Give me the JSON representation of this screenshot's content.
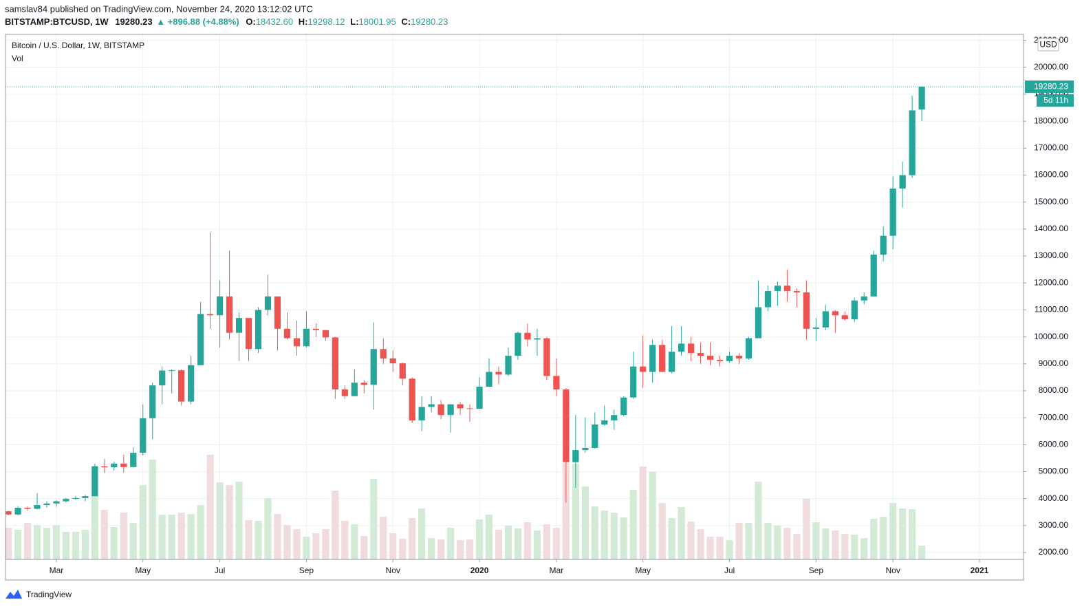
{
  "chart_data": {
    "type": "candlestick",
    "publisher_line": "samslav84 published on TradingView.com, November 24, 2020 13:12:02 UTC",
    "symbol": "BITSTAMP:BTCUSD, 1W",
    "last": "19280.23",
    "change": "▲ +896.88 (+4.88%)",
    "ohlc_labels": [
      {
        "label": "O:",
        "value": "18432.60"
      },
      {
        "label": "H:",
        "value": "19298.12"
      },
      {
        "label": "L:",
        "value": "18001.95"
      },
      {
        "label": "C:",
        "value": "19280.23"
      }
    ],
    "title": "Bitcoin / U.S. Dollar, 1W, BITSTAMP",
    "volume_label": "Vol",
    "currency": "USD",
    "price_tag": "19280.23",
    "countdown": "5d 11h",
    "footer": "TradingView",
    "up_color": "#26a69a",
    "down_color": "#ef5350",
    "volume_up_color": "#d3ebd6",
    "volume_down_color": "#f0dcdc",
    "grid": true,
    "x": [
      0,
      1,
      2,
      3,
      4,
      5,
      6,
      7,
      8,
      9,
      10,
      11,
      12,
      13,
      14,
      15,
      16,
      17,
      18,
      19,
      20,
      21,
      22,
      23,
      24,
      25,
      26,
      27,
      28,
      29,
      30,
      31,
      32,
      33,
      34,
      35,
      36,
      37,
      38,
      39,
      40,
      41,
      42,
      43,
      44,
      45,
      46,
      47,
      48,
      49,
      50,
      51,
      52,
      53,
      54,
      55,
      56,
      57,
      58,
      59,
      60,
      61,
      62,
      63,
      64,
      65,
      66,
      67,
      68,
      69,
      70,
      71,
      72,
      73,
      74,
      75,
      76,
      77,
      78,
      79,
      80,
      81,
      82,
      83,
      84,
      85,
      86,
      87,
      88,
      89,
      90,
      91,
      92,
      93,
      94,
      95
    ],
    "xlim": [
      -0.29,
      105.58
    ],
    "xticks": [
      {
        "value": 5,
        "label": "Mar"
      },
      {
        "value": 14,
        "label": "May"
      },
      {
        "value": 22,
        "label": "Jul"
      },
      {
        "value": 31,
        "label": "Sep"
      },
      {
        "value": 40,
        "label": "Nov"
      },
      {
        "value": 49,
        "label": "2020"
      },
      {
        "value": 57,
        "label": "Mar"
      },
      {
        "value": 66,
        "label": "May"
      },
      {
        "value": 75,
        "label": "Jul"
      },
      {
        "value": 84,
        "label": "Sep"
      },
      {
        "value": 92,
        "label": "Nov"
      },
      {
        "value": 101,
        "label": "2021"
      }
    ],
    "ylim": [
      1745,
      21220
    ],
    "yticks": [
      {
        "value": 2000,
        "label": "2000.00"
      },
      {
        "value": 3000,
        "label": "3000.00"
      },
      {
        "value": 4000,
        "label": "4000.00"
      },
      {
        "value": 5000,
        "label": "5000.00"
      },
      {
        "value": 6000,
        "label": "6000.00"
      },
      {
        "value": 7000,
        "label": "7000.00"
      },
      {
        "value": 8000,
        "label": "8000.00"
      },
      {
        "value": 9000,
        "label": "9000.00"
      },
      {
        "value": 10000,
        "label": "10000.00"
      },
      {
        "value": 11000,
        "label": "11000.00"
      },
      {
        "value": 12000,
        "label": "12000.00"
      },
      {
        "value": 13000,
        "label": "13000.00"
      },
      {
        "value": 14000,
        "label": "14000.00"
      },
      {
        "value": 15000,
        "label": "15000.00"
      },
      {
        "value": 16000,
        "label": "16000.00"
      },
      {
        "value": 17000,
        "label": "17000.00"
      },
      {
        "value": 18000,
        "label": "18000.00"
      },
      {
        "value": 19000,
        "label": "19000.00"
      },
      {
        "value": 20000,
        "label": "20000.00"
      },
      {
        "value": 21000,
        "label": "21000.00"
      }
    ],
    "volume_lim": [
      0,
      763
    ],
    "open": [
      3530,
      3410,
      3660,
      3620,
      3760,
      3820,
      3900,
      3990,
      4020,
      4090,
      5200,
      5160,
      5300,
      5170,
      5700,
      6980,
      8200,
      8750,
      8760,
      7600,
      8950,
      10850,
      10800,
      11500,
      10150,
      10700,
      9550,
      11000,
      11500,
      10300,
      9950,
      9650,
      10300,
      10250,
      9980,
      8050,
      7800,
      8300,
      8220,
      9550,
      9200,
      9020,
      8450,
      6900,
      7400,
      7500,
      7100,
      7500,
      7350,
      7330,
      8150,
      8700,
      8600,
      9300,
      10150,
      9900,
      9950,
      8550,
      8050,
      5350,
      5800,
      5880,
      6750,
      6900,
      7100,
      7750,
      8900,
      8700,
      9700,
      8700,
      9450,
      9750,
      9400,
      9300,
      9150,
      9100,
      9300,
      9200,
      9950,
      11100,
      11700,
      11900,
      11700,
      11650,
      10300,
      10350,
      10950,
      10800,
      10650,
      11350,
      11500,
      13050,
      13750,
      15500,
      16000,
      18432.6
    ],
    "high": [
      3560,
      3720,
      3700,
      4200,
      3900,
      3940,
      4030,
      4100,
      4140,
      5300,
      5470,
      5370,
      5630,
      5900,
      7500,
      8300,
      8900,
      8800,
      8800,
      9300,
      11300,
      13880,
      12100,
      13200,
      10900,
      10700,
      11100,
      12300,
      11500,
      10900,
      10600,
      10950,
      10500,
      10250,
      10000,
      8200,
      8800,
      8400,
      10540,
      9950,
      9500,
      9050,
      8500,
      7800,
      7800,
      7650,
      7500,
      7600,
      7500,
      8500,
      9200,
      8900,
      9600,
      10200,
      10500,
      10300,
      10000,
      9200,
      8100,
      7100,
      7000,
      7200,
      7450,
      7300,
      7800,
      9450,
      10050,
      9900,
      9900,
      10400,
      10400,
      10000,
      9800,
      9800,
      9300,
      9450,
      9400,
      10000,
      12100,
      11900,
      12050,
      12500,
      11800,
      12100,
      10700,
      11200,
      11000,
      10950,
      11450,
      11650,
      13200,
      14100,
      15950,
      16500,
      18950,
      19298.12
    ],
    "low": [
      3380,
      3380,
      3560,
      3600,
      3670,
      3700,
      3850,
      3950,
      3900,
      4080,
      4950,
      5030,
      4960,
      5150,
      5600,
      6200,
      7500,
      7900,
      7450,
      7500,
      8950,
      10300,
      9600,
      9900,
      9100,
      9100,
      9400,
      10800,
      9500,
      9900,
      9300,
      9600,
      10000,
      9850,
      7700,
      7700,
      7800,
      7900,
      7300,
      9000,
      8700,
      8200,
      6800,
      6500,
      7200,
      6950,
      6450,
      7100,
      6850,
      7330,
      8150,
      8250,
      8550,
      9150,
      9650,
      9300,
      8400,
      7800,
      3850,
      4400,
      5700,
      5850,
      6700,
      6550,
      7050,
      7700,
      8100,
      8300,
      8700,
      8650,
      9300,
      9100,
      9000,
      8950,
      8900,
      9050,
      9000,
      9150,
      9950,
      10950,
      11150,
      11300,
      11100,
      9900,
      9850,
      10250,
      10150,
      10600,
      10550,
      11200,
      11500,
      12800,
      13250,
      14800,
      15900,
      18001.95
    ],
    "close": [
      3410,
      3660,
      3620,
      3760,
      3820,
      3900,
      3990,
      4020,
      4090,
      5200,
      5160,
      5300,
      5170,
      5700,
      6980,
      8200,
      8750,
      8760,
      7600,
      8950,
      10850,
      10800,
      11500,
      10150,
      10700,
      9550,
      11000,
      11500,
      10300,
      9950,
      9650,
      10300,
      10250,
      9980,
      8050,
      7800,
      8300,
      8220,
      9550,
      9200,
      9020,
      8450,
      6900,
      7400,
      7500,
      7100,
      7500,
      7350,
      7330,
      8150,
      8700,
      8600,
      9300,
      10150,
      9900,
      9950,
      8550,
      8050,
      5350,
      5800,
      5880,
      6750,
      6900,
      7100,
      7750,
      8900,
      8700,
      9700,
      8700,
      9450,
      9750,
      9400,
      9300,
      9150,
      9100,
      9300,
      9200,
      9950,
      11100,
      11700,
      11900,
      11700,
      11650,
      10300,
      10350,
      10950,
      10800,
      10650,
      11350,
      11500,
      13050,
      13750,
      15500,
      16000,
      18400,
      19280.23
    ],
    "volume": [
      46,
      43,
      53,
      50,
      46,
      50,
      40,
      40,
      43,
      93,
      72,
      47,
      68,
      53,
      108,
      145,
      65,
      65,
      68,
      66,
      79,
      152,
      112,
      108,
      113,
      57,
      56,
      89,
      66,
      50,
      44,
      33,
      38,
      44,
      100,
      56,
      51,
      34,
      117,
      62,
      38,
      30,
      60,
      74,
      31,
      29,
      46,
      28,
      29,
      58,
      65,
      43,
      49,
      45,
      54,
      42,
      51,
      46,
      140,
      139,
      106,
      77,
      71,
      68,
      61,
      101,
      135,
      127,
      82,
      60,
      76,
      55,
      44,
      33,
      33,
      28,
      53,
      53,
      113,
      53,
      49,
      46,
      37,
      88,
      54,
      45,
      42,
      37,
      36,
      31,
      59,
      62,
      82,
      74,
      73,
      20
    ]
  }
}
